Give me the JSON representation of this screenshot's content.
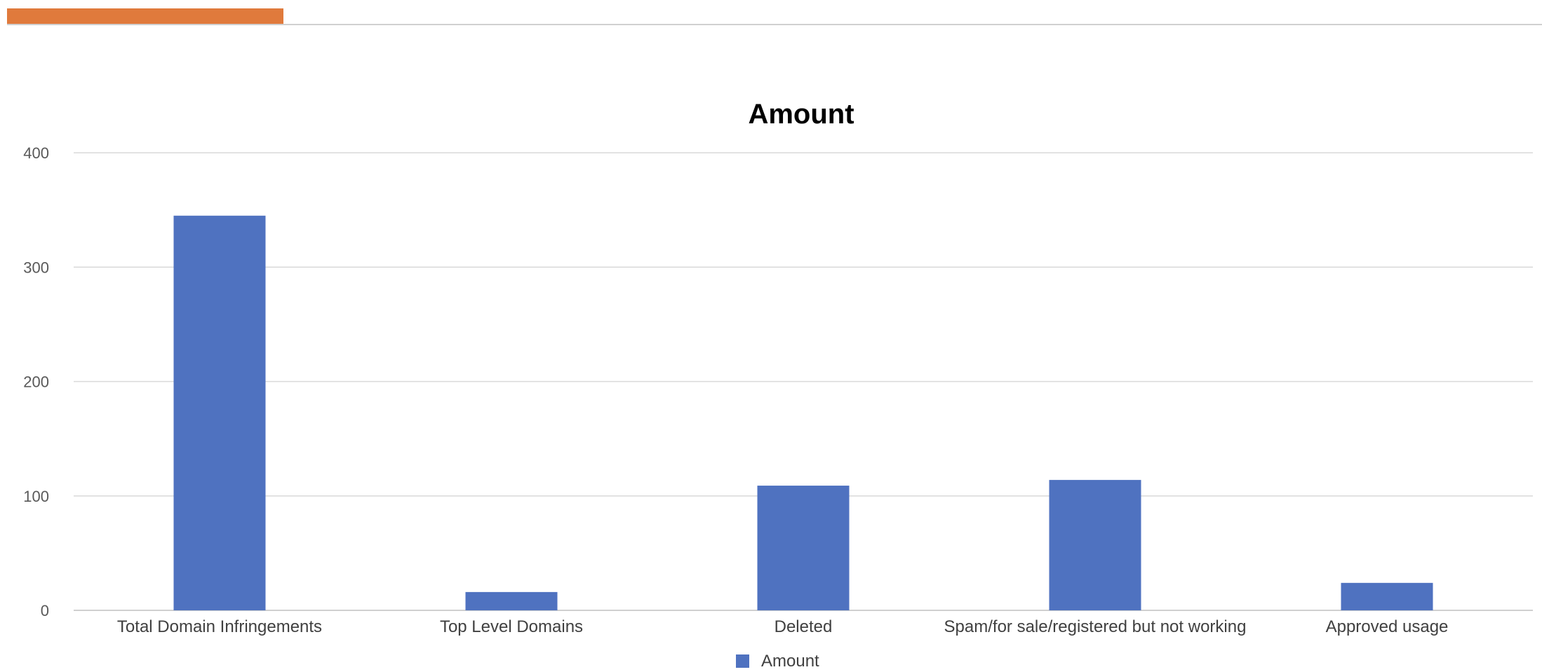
{
  "chart_data": {
    "type": "bar",
    "title": "Amount",
    "categories": [
      "Total Domain Infringements",
      "Top Level Domains",
      "Deleted",
      "Spam/for sale/registered but not working",
      "Approved usage"
    ],
    "series": [
      {
        "name": "Amount",
        "values": [
          345,
          16,
          109,
          114,
          24
        ],
        "color": "#4f72c0"
      }
    ],
    "yticks": [
      "0",
      "100",
      "200",
      "300",
      "400"
    ],
    "ylim": [
      0,
      400
    ],
    "xlabel": "",
    "ylabel": "",
    "grid": true,
    "legend": "bottom"
  },
  "accent_color": "#e07a3c"
}
